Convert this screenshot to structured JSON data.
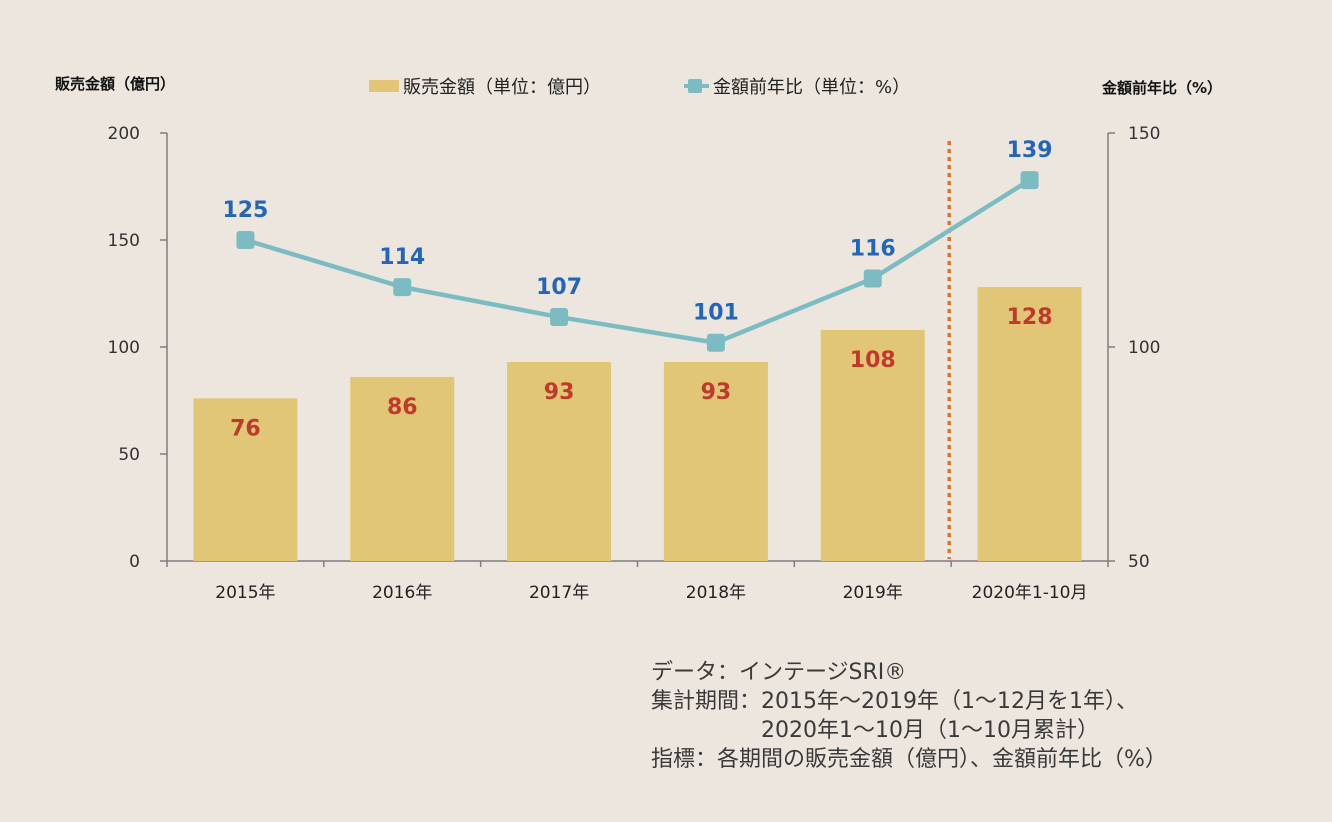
{
  "chart_data": {
    "type": "bar+line",
    "categories": [
      "2015年",
      "2016年",
      "2017年",
      "2018年",
      "2019年",
      "2020年1-10月"
    ],
    "series": [
      {
        "name": "販売金額（単位：億円）",
        "type": "bar",
        "axis": "left",
        "values": [
          76,
          86,
          93,
          93,
          108,
          128
        ],
        "labels": [
          "76",
          "86",
          "93",
          "93",
          "108",
          "128"
        ],
        "color": "#e2c677",
        "label_color": "#c0392b"
      },
      {
        "name": "金額前年比（単位：%）",
        "type": "line",
        "axis": "right",
        "values": [
          125,
          114,
          107,
          101,
          116,
          139
        ],
        "labels": [
          "125",
          "114",
          "107",
          "101",
          "116",
          "139"
        ],
        "color": "#7bbcc3",
        "label_color": "#2366b8"
      }
    ],
    "left_axis": {
      "label": "販売金額（億円）",
      "range": [
        0,
        200
      ],
      "ticks": [
        0,
        50,
        100,
        150,
        200
      ],
      "tick_labels": [
        "0",
        "50",
        "100",
        "150",
        "200"
      ]
    },
    "right_axis": {
      "label": "金額前年比（%）",
      "range": [
        50,
        150
      ],
      "ticks": [
        50,
        100,
        150
      ],
      "tick_labels": [
        "50",
        "100",
        "150"
      ]
    },
    "separator": {
      "between": [
        "2019年",
        "2020年1-10月"
      ],
      "style": "dotted",
      "color": "#e4712f"
    },
    "legend": {
      "placement": "top-center"
    },
    "grid": false,
    "axis_color": "#7f7f7f"
  },
  "notes": {
    "line1": "データ：インテージSRI®",
    "line2": "集計期間：2015年～2019年（1～12月を1年）、",
    "line3": "　　　　　2020年1～10月（1～10月累計）",
    "line4": "指標：各期間の販売金額（億円）、金額前年比（%）"
  }
}
